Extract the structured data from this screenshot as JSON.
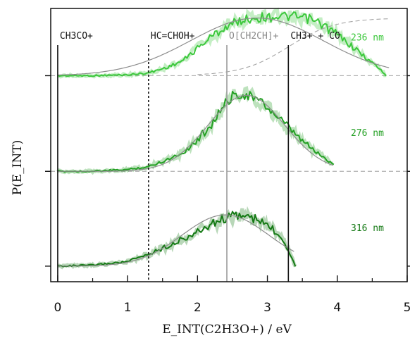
{
  "chart_data": {
    "type": "line",
    "xlabel": "E_INT(C2H3O+) / eV",
    "ylabel": "P(E_INT)",
    "xlim": [
      -0.1,
      5.0
    ],
    "x_ticks": [
      "0",
      "1",
      "2",
      "3",
      "4",
      "5"
    ],
    "ylim": [
      0,
      1
    ],
    "grid": false,
    "legend": "inline labels at right",
    "series": [
      {
        "name": "236 nm",
        "color": "#3cc83c",
        "baseline_fraction": 0.754,
        "x": [
          0.0,
          0.5,
          1.0,
          1.3,
          1.6,
          1.8,
          2.0,
          2.2,
          2.4,
          2.6,
          2.8,
          3.0,
          3.2,
          3.4,
          3.6,
          3.8,
          4.0,
          4.2,
          4.4,
          4.6,
          4.7
        ],
        "values": [
          0.0,
          0.0,
          0.01,
          0.03,
          0.1,
          0.17,
          0.3,
          0.43,
          0.53,
          0.6,
          0.63,
          0.64,
          0.65,
          0.64,
          0.62,
          0.55,
          0.45,
          0.33,
          0.2,
          0.08,
          0.0
        ]
      },
      {
        "name": "276 nm",
        "color": "#24a024",
        "baseline_fraction": 0.404,
        "x": [
          0.0,
          0.5,
          1.0,
          1.3,
          1.6,
          1.8,
          2.0,
          2.2,
          2.4,
          2.5,
          2.6,
          2.8,
          3.0,
          3.2,
          3.4,
          3.6,
          3.8,
          3.95
        ],
        "values": [
          0.0,
          0.0,
          0.02,
          0.05,
          0.14,
          0.21,
          0.34,
          0.52,
          0.74,
          0.82,
          0.85,
          0.81,
          0.7,
          0.55,
          0.4,
          0.27,
          0.15,
          0.08
        ]
      },
      {
        "name": "316 nm",
        "color": "#157a15",
        "baseline_fraction": 0.057,
        "x": [
          0.0,
          0.5,
          1.0,
          1.3,
          1.6,
          1.8,
          2.0,
          2.2,
          2.4,
          2.6,
          2.8,
          3.0,
          3.2,
          3.3,
          3.4
        ],
        "values": [
          0.0,
          0.01,
          0.05,
          0.13,
          0.23,
          0.3,
          0.37,
          0.46,
          0.53,
          0.56,
          0.52,
          0.45,
          0.32,
          0.18,
          0.0
        ]
      }
    ],
    "fits": [
      {
        "series": "236 nm",
        "type": "gaussian",
        "center": 2.85,
        "sigma": 0.95,
        "amplitude": 0.63
      },
      {
        "series": "276 nm",
        "type": "gaussian",
        "center": 2.7,
        "sigma": 0.55,
        "amplitude": 0.83
      },
      {
        "series": "316 nm",
        "type": "gaussian",
        "center": 2.4,
        "sigma": 0.62,
        "amplitude": 0.56
      }
    ],
    "annotations": [
      {
        "label": "CH3CO+",
        "x": 0.0,
        "style": "solid",
        "color": "#111111"
      },
      {
        "label": "HC=CHOH+",
        "x": 1.3,
        "style": "dotted",
        "color": "#111111"
      },
      {
        "label": "O[CH2CH]+",
        "x": 2.42,
        "style": "solid",
        "color": "#9a9a9a"
      },
      {
        "label": "CH3+ + CO",
        "x": 3.3,
        "style": "solid",
        "color": "#111111"
      }
    ]
  }
}
